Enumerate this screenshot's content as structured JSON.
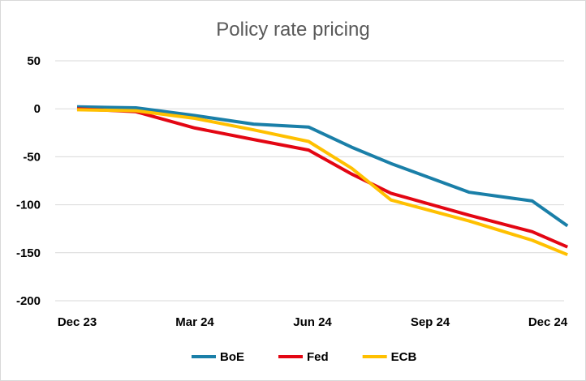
{
  "chart_data": {
    "type": "line",
    "title": "Policy rate pricing",
    "xlabel": "",
    "ylabel": "",
    "ylim": [
      -200,
      50
    ],
    "yticks": [
      50,
      0,
      -50,
      -100,
      -150,
      -200
    ],
    "x_tick_labels": [
      "Dec 23",
      "Mar 24",
      "Jun 24",
      "Sep 24",
      "Dec 24"
    ],
    "x_tick_positions": [
      0,
      3,
      6,
      9,
      12
    ],
    "xlim": [
      0,
      12
    ],
    "grid": "horizontal",
    "legend_position": "bottom",
    "series": [
      {
        "name": "BoE",
        "color": "#1a7fa8",
        "x": [
          0,
          1.5,
          3,
          4.5,
          5.9,
          7,
          8,
          10,
          11.6,
          12.5
        ],
        "y": [
          2,
          1,
          -7,
          -16,
          -19,
          -40,
          -57,
          -87,
          -96,
          -122
        ]
      },
      {
        "name": "Fed",
        "color": "#e30613",
        "x": [
          0,
          1.5,
          3,
          4.5,
          5.9,
          7,
          8,
          10,
          11.6,
          12.5
        ],
        "y": [
          0,
          -3,
          -20,
          -32,
          -43,
          -68,
          -88,
          -111,
          -128,
          -144
        ]
      },
      {
        "name": "ECB",
        "color": "#ffc000",
        "x": [
          0,
          1.5,
          3,
          4.5,
          5.9,
          7,
          8,
          10,
          11.6,
          12.5
        ],
        "y": [
          -1,
          -2,
          -10,
          -22,
          -34,
          -62,
          -95,
          -117,
          -137,
          -152
        ]
      }
    ]
  }
}
